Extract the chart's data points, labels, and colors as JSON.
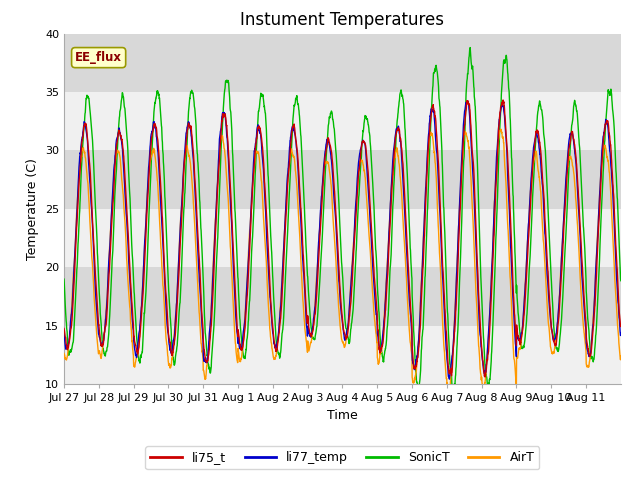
{
  "title": "Instument Temperatures",
  "xlabel": "Time",
  "ylabel": "Temperature (C)",
  "ylim": [
    10,
    40
  ],
  "annotation": "EE_flux",
  "line_colors": {
    "li75_t": "#cc0000",
    "li77_temp": "#0000cc",
    "SonicT": "#00bb00",
    "AirT": "#ff9900"
  },
  "background_color": "#ffffff",
  "plot_bg_color": "#e8e8e8",
  "band_color_light": "#f0f0f0",
  "band_color_dark": "#d8d8d8",
  "title_fontsize": 12,
  "axis_fontsize": 9,
  "tick_fontsize": 8,
  "num_days": 16,
  "tick_labels": [
    "Jul 27",
    "Jul 28",
    "Jul 29",
    "Jul 30",
    "Jul 31",
    "Aug 1",
    "Aug 2",
    "Aug 3",
    "Aug 4",
    "Aug 5",
    "Aug 6",
    "Aug 7",
    "Aug 8",
    "Aug 9",
    "Aug 10",
    "Aug 11"
  ],
  "yticks": [
    10,
    15,
    20,
    25,
    30,
    35,
    40
  ],
  "seed": 12345,
  "pts_per_day": 144
}
